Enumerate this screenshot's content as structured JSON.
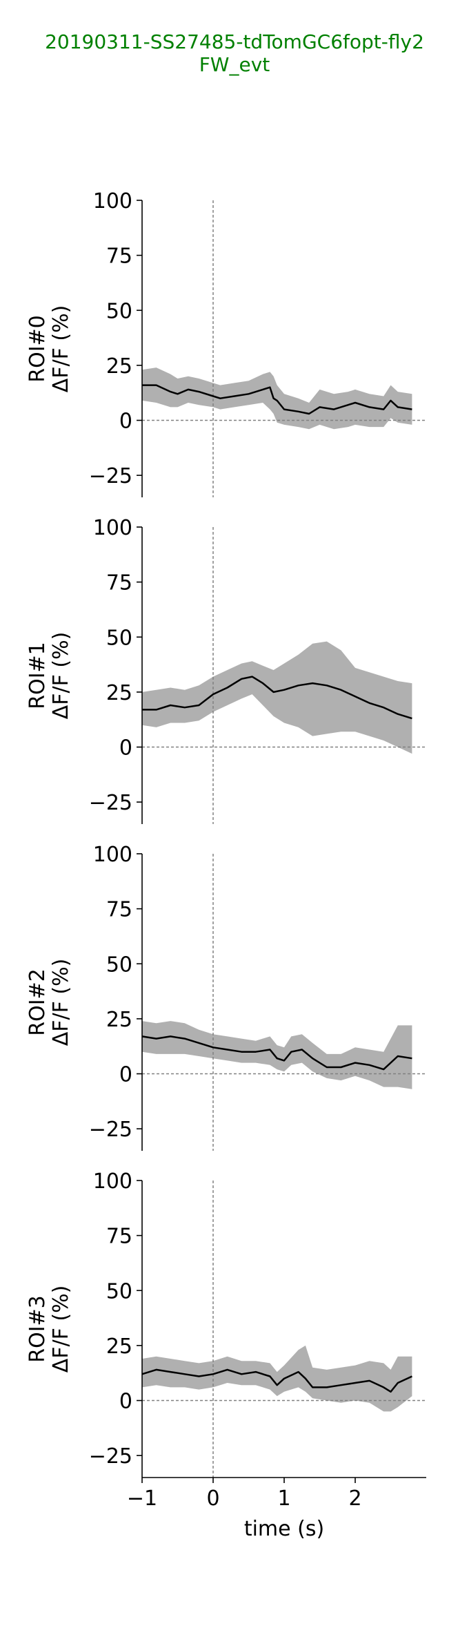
{
  "title": {
    "line1": "20190311-SS27485-tdTomGC6fopt-fly2",
    "line2": "FW_evt",
    "color": "#008000"
  },
  "chart_data": [
    {
      "type": "line",
      "ylabel": [
        "ROI#0",
        "ΔF/F (%)"
      ],
      "xlabel": "",
      "xlim": [
        -1,
        3.0
      ],
      "ylim": [
        -35,
        100
      ],
      "yticks": [
        100,
        75,
        50,
        25,
        0,
        -25
      ],
      "xticks": [],
      "show_xaxis": false,
      "line_color": "#000000",
      "band_color": "#b0b0b0",
      "reference_lines": {
        "x": 0,
        "y": 0
      },
      "x": [
        -1.0,
        -0.8,
        -0.6,
        -0.5,
        -0.35,
        -0.2,
        0.0,
        0.1,
        0.3,
        0.5,
        0.7,
        0.8,
        0.85,
        0.9,
        1.0,
        1.2,
        1.35,
        1.5,
        1.7,
        1.9,
        2.0,
        2.2,
        2.4,
        2.5,
        2.6,
        2.8
      ],
      "y": [
        16,
        16,
        13,
        12,
        14,
        13,
        11,
        10,
        11,
        12,
        14,
        15,
        10,
        9,
        5,
        4,
        3,
        6,
        5,
        7,
        8,
        6,
        5,
        9,
        6,
        5
      ],
      "lower": [
        9,
        8,
        6,
        6,
        8,
        7,
        6,
        5,
        6,
        7,
        8,
        5,
        3,
        -1,
        -2,
        -3,
        -4,
        -2,
        -4,
        -3,
        -2,
        -3,
        -3,
        1,
        -1,
        -2
      ],
      "upper": [
        23,
        24,
        21,
        19,
        20,
        19,
        17,
        16,
        17,
        18,
        21,
        22,
        20,
        16,
        12,
        10,
        8,
        14,
        12,
        13,
        14,
        12,
        11,
        16,
        13,
        12
      ]
    },
    {
      "type": "line",
      "ylabel": [
        "ROI#1",
        "ΔF/F (%)"
      ],
      "xlabel": "",
      "xlim": [
        -1,
        3.0
      ],
      "ylim": [
        -35,
        100
      ],
      "yticks": [
        100,
        75,
        50,
        25,
        0,
        -25
      ],
      "xticks": [],
      "show_xaxis": false,
      "line_color": "#000000",
      "band_color": "#b0b0b0",
      "reference_lines": {
        "x": 0,
        "y": 0
      },
      "x": [
        -1.0,
        -0.8,
        -0.6,
        -0.4,
        -0.2,
        0.0,
        0.2,
        0.4,
        0.55,
        0.7,
        0.85,
        1.0,
        1.2,
        1.4,
        1.6,
        1.8,
        2.0,
        2.2,
        2.4,
        2.6,
        2.8
      ],
      "y": [
        17,
        17,
        19,
        18,
        19,
        24,
        27,
        31,
        32,
        29,
        25,
        26,
        28,
        29,
        28,
        26,
        23,
        20,
        18,
        15,
        13
      ],
      "lower": [
        10,
        9,
        11,
        11,
        12,
        16,
        19,
        22,
        24,
        19,
        14,
        11,
        9,
        5,
        6,
        7,
        7,
        5,
        3,
        0,
        -3
      ],
      "upper": [
        25,
        26,
        27,
        26,
        28,
        32,
        35,
        38,
        39,
        37,
        35,
        38,
        42,
        47,
        48,
        44,
        36,
        34,
        32,
        30,
        29
      ]
    },
    {
      "type": "line",
      "ylabel": [
        "ROI#2",
        "ΔF/F (%)"
      ],
      "xlabel": "",
      "xlim": [
        -1,
        3.0
      ],
      "ylim": [
        -35,
        100
      ],
      "yticks": [
        100,
        75,
        50,
        25,
        0,
        -25
      ],
      "xticks": [],
      "show_xaxis": false,
      "line_color": "#000000",
      "band_color": "#b0b0b0",
      "reference_lines": {
        "x": 0,
        "y": 0
      },
      "x": [
        -1.0,
        -0.8,
        -0.6,
        -0.4,
        -0.2,
        0.0,
        0.2,
        0.4,
        0.6,
        0.8,
        0.9,
        1.0,
        1.1,
        1.25,
        1.4,
        1.6,
        1.8,
        2.0,
        2.2,
        2.4,
        2.6,
        2.8
      ],
      "y": [
        17,
        16,
        17,
        16,
        14,
        12,
        11,
        10,
        10,
        11,
        7,
        6,
        10,
        11,
        7,
        3,
        3,
        5,
        4,
        2,
        8,
        7
      ],
      "lower": [
        10,
        9,
        9,
        9,
        8,
        7,
        6,
        5,
        5,
        4,
        2,
        1,
        4,
        5,
        1,
        -2,
        -3,
        -1,
        -3,
        -6,
        -6,
        -7
      ],
      "upper": [
        24,
        23,
        24,
        23,
        20,
        18,
        17,
        16,
        15,
        17,
        13,
        12,
        17,
        18,
        14,
        9,
        9,
        12,
        11,
        10,
        22,
        22
      ]
    },
    {
      "type": "line",
      "ylabel": [
        "ROI#3",
        "ΔF/F (%)"
      ],
      "xlabel": "time (s)",
      "xlim": [
        -1,
        3.0
      ],
      "ylim": [
        -35,
        100
      ],
      "yticks": [
        100,
        75,
        50,
        25,
        0,
        -25
      ],
      "xticks": [
        -1,
        0,
        1,
        2
      ],
      "xticklabels": [
        "−1",
        "0",
        "1",
        "2"
      ],
      "show_xaxis": true,
      "line_color": "#000000",
      "band_color": "#b0b0b0",
      "reference_lines": {
        "x": 0,
        "y": 0
      },
      "x": [
        -1.0,
        -0.8,
        -0.6,
        -0.4,
        -0.2,
        0.0,
        0.2,
        0.4,
        0.6,
        0.8,
        0.9,
        1.0,
        1.2,
        1.3,
        1.4,
        1.6,
        1.8,
        2.0,
        2.2,
        2.4,
        2.5,
        2.6,
        2.8
      ],
      "y": [
        12,
        14,
        13,
        12,
        11,
        12,
        14,
        12,
        13,
        11,
        7,
        10,
        13,
        10,
        6,
        6,
        7,
        8,
        9,
        6,
        4,
        8,
        11
      ],
      "lower": [
        6,
        7,
        6,
        6,
        5,
        6,
        8,
        7,
        7,
        5,
        2,
        4,
        6,
        4,
        1,
        0,
        -1,
        0,
        -1,
        -5,
        -5,
        -3,
        2
      ],
      "upper": [
        19,
        20,
        19,
        18,
        17,
        18,
        20,
        18,
        18,
        17,
        13,
        16,
        23,
        25,
        15,
        14,
        15,
        16,
        18,
        17,
        14,
        20,
        20
      ]
    }
  ]
}
